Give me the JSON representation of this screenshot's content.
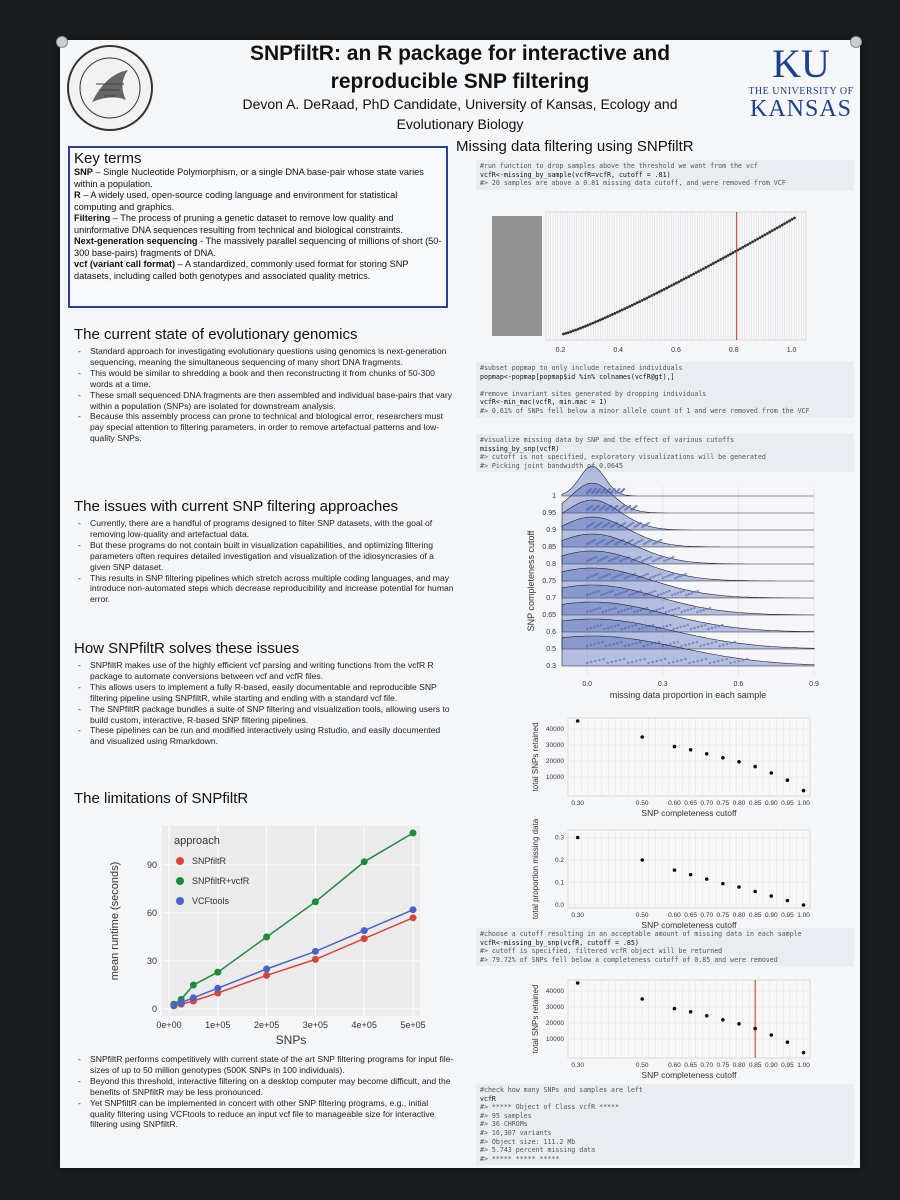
{
  "header": {
    "title_line1": "SNPfiltR: an R package for interactive and",
    "title_line2": "reproducible SNP filtering",
    "author_line1": "Devon A. DeRaad, PhD Candidate, University of Kansas, Ecology and",
    "author_line2": "Evolutionary Biology",
    "seal_text": "KU NATURAL HISTORY MUSEUM",
    "logo_mark": "KU",
    "logo_sub": "THE UNIVERSITY OF",
    "logo_big": "KANSAS"
  },
  "key_terms": {
    "heading": "Key terms",
    "items": [
      {
        "term": "SNP",
        "def": " – Single Nucleotide Polymorphism, or a single DNA base-pair whose state varies within a population."
      },
      {
        "term": "R",
        "def": " – A widely used, open-source coding language and environment for statistical computing and graphics."
      },
      {
        "term": "Filtering",
        "def": " – The process of pruning a genetic dataset to remove low quality and uninformative DNA sequences resulting from technical and biological constraints."
      },
      {
        "term": "Next-generation sequencing",
        "def": " -  The massively parallel sequencing of millions of short (50-300 base-pairs) fragments of DNA."
      },
      {
        "term": "vcf (variant call format)",
        "def": " – A standardized, commonly used format for storing SNP datasets, including called both genotypes and associated quality metrics."
      }
    ]
  },
  "sections": [
    {
      "heading": "The current state of evolutionary genomics",
      "items": [
        "Standard approach for investigating evolutionary questions using genomics is next-generation sequencing, meaning the simultaneous sequencing of many short DNA fragments.",
        "This would be similar to shredding a book and then reconstructing it from chunks of 50-300 words at a time.",
        "These small sequenced DNA fragments are then assembled and individual base-pairs that vary within a population (SNPs) are isolated for downstream analysis.",
        "Because this assembly process can prone to technical and biological error, researchers must pay special attention to filtering parameters, in order to remove artefactual patterns and low-quality SNPs."
      ]
    },
    {
      "heading": "The issues with current SNP filtering approaches",
      "items": [
        "Currently, there are a handful of programs designed to filter SNP datasets, with the goal of removing low-quality and artefactual data.",
        "But these programs do not contain built in visualization capabilities, and optimizing filtering parameters often requires detailed investigation and visualization of the idiosyncrasies of a given SNP dataset.",
        "This results in SNP filtering pipelines which stretch across multiple coding languages, and may introduce non-automated steps which decrease reproducibility and increase potential for human error."
      ]
    },
    {
      "heading": "How SNPfiltR solves these issues",
      "items": [
        "SNPfiltR makes use of the highly efficient vcf parsing and writing functions from the vcfR R package to automate conversions between vcf and vcfR files.",
        "This allows users to implement a fully R-based, easily documentable and reproducible SNP filtering pipeline using SNPfiltR, while starting and ending with a standard vcf file.",
        "The SNPfiltR package bundles a suite of SNP filtering and visualization tools, allowing users to build custom, interactive, R-based SNP filtering pipelines.",
        "These pipelines can be run and modified interactively using Rstudio, and easily documented and visualized using Rmarkdown."
      ]
    },
    {
      "heading": "The limitations of SNPfiltR",
      "items": []
    }
  ],
  "limitations_items": [
    "SNPfiltR performs competitively with current state of the art SNP filtering programs for input file-sizes of up to 50 million genotypes (500K SNPs in 100 individuals).",
    "Beyond this threshold, interactive filtering on a desktop computer may become difficult, and the benefits of SNPfiltR may be less pronounced.",
    "Yet SNPfiltR can be implemented in concert with other SNP filtering programs, e.g., initial quality filtering using VCFtools to reduce an input vcf file to manageable size for interactive filtering using SNPfiltR."
  ],
  "right": {
    "heading": "Missing data filtering using SNPfiltR",
    "code1": [
      "#run function to drop samples above the threshold we want from the vcf",
      "vcfR<-missing_by_sample(vcfR=vcfR, cutoff = .81)",
      "#> 20 samples are above a 0.81 missing data cutoff, and were removed from VCF"
    ],
    "code2": [
      "#subset popmap to only include retained individuals",
      "popmap<-popmap[popmap$id %in% colnames(vcfR@gt),]",
      "",
      "#remove invariant sites generated by dropping individuals",
      "vcfR<-min_mac(vcfR, min.mac = 1)",
      "#> 0.61% of SNPs fell below a minor allele count of 1 and were removed from the VCF"
    ],
    "code3": [
      "#visualize missing data by SNP and the effect of various cutoffs",
      "missing_by_snp(vcfR)",
      "#> cutoff is not specified, exploratory visualizations will be generated",
      "#> Picking joint bandwidth of 0.0645"
    ],
    "code4": [
      "#choose a cutoff resulting in an acceptable amount of missing data in each sample",
      "vcfR<-missing_by_snp(vcfR, cutoff = .85)",
      "#> cutoff is specified, filtered vcfR object will be returned",
      "#> 79.72% of SNPs fell below a completeness cutoff of 0.85 and were removed"
    ],
    "code5": [
      "#check how many SNPs and samples are left",
      "vcfR",
      "#> ***** Object of Class vcfR *****",
      "#> 95 samples",
      "#> 36 CHROMs",
      "#> 16,307 variants",
      "#> Object size: 111.2 Mb",
      "#> 5.743 percent missing data",
      "#> *****        *****         *****"
    ]
  },
  "chart_data": [
    {
      "type": "line",
      "title": "",
      "xlabel": "SNPs",
      "ylabel": "mean runtime (seconds)",
      "legend_title": "approach",
      "legend_position": "top-left",
      "grid": true,
      "xlim": [
        0,
        500000
      ],
      "ylim": [
        0,
        110
      ],
      "xticks": [
        "0e+00",
        "1e+05",
        "2e+05",
        "3e+05",
        "4e+05",
        "5e+05"
      ],
      "yticks": [
        "0",
        "30",
        "60",
        "90"
      ],
      "x": [
        10000,
        25000,
        50000,
        100000,
        200000,
        300000,
        400000,
        500000
      ],
      "series": [
        {
          "name": "SNPfiltR",
          "color": "#d9453b",
          "values": [
            2,
            3,
            5,
            10,
            21,
            31,
            44,
            57
          ]
        },
        {
          "name": "SNPfiltR+vcfR",
          "color": "#1e8a3c",
          "values": [
            3,
            6,
            15,
            23,
            45,
            67,
            92,
            110
          ]
        },
        {
          "name": "VCFtools",
          "color": "#4a63c9",
          "values": [
            2,
            4,
            7,
            13,
            25,
            36,
            49,
            62
          ]
        }
      ]
    },
    {
      "type": "scatter",
      "title": "",
      "xlabel": "",
      "ylabel": "",
      "xlim": [
        0.15,
        1.05
      ],
      "xticks": [
        "0.2",
        "0.4",
        "0.6",
        "0.8",
        "1.0"
      ],
      "cutoff_line": 0.81,
      "grid": true,
      "points_x": [
        0.15,
        0.2,
        0.25,
        0.3,
        0.35,
        0.4,
        0.45,
        0.5,
        0.55,
        0.6,
        0.65,
        0.7,
        0.75,
        0.8,
        0.85,
        0.9,
        0.95,
        1.0
      ]
    },
    {
      "type": "area",
      "title": "",
      "xlabel": "missing data proportion in each sample",
      "ylabel": "SNP completeness cutoff",
      "xlim": [
        -0.1,
        0.9
      ],
      "xticks": [
        "0.0",
        "0.3",
        "0.6",
        "0.9"
      ],
      "yticks": [
        "0.3",
        "0.5",
        "0.6",
        "0.65",
        "0.7",
        "0.75",
        "0.8",
        "0.85",
        "0.9",
        "0.95",
        "1"
      ],
      "grid": true
    },
    {
      "type": "scatter",
      "title": "",
      "xlabel": "SNP completeness cutoff",
      "ylabel": "total SNPs retained",
      "xlim": [
        0.27,
        1.02
      ],
      "ylim": [
        0,
        45000
      ],
      "grid": true,
      "xticks": [
        "0.30",
        "0.50",
        "0.60",
        "0.65",
        "0.70",
        "0.75",
        "0.80",
        "0.85",
        "0.90",
        "0.95",
        "1.00"
      ],
      "yticks": [
        "10000",
        "20000",
        "30000",
        "40000"
      ],
      "x": [
        0.3,
        0.5,
        0.6,
        0.65,
        0.7,
        0.75,
        0.8,
        0.85,
        0.9,
        0.95,
        1.0
      ],
      "values": [
        45000,
        35000,
        29000,
        27000,
        24500,
        22000,
        19500,
        16500,
        12500,
        8000,
        1500
      ]
    },
    {
      "type": "scatter",
      "title": "",
      "xlabel": "SNP completeness cutoff",
      "ylabel": "total proportion missing data",
      "xlim": [
        0.27,
        1.02
      ],
      "ylim": [
        0,
        0.32
      ],
      "grid": true,
      "xticks": [
        "0.30",
        "0.50",
        "0.60",
        "0.65",
        "0.70",
        "0.75",
        "0.80",
        "0.85",
        "0.90",
        "0.95",
        "1.00"
      ],
      "yticks": [
        "0.0",
        "0.1",
        "0.2",
        "0.3"
      ],
      "x": [
        0.3,
        0.5,
        0.6,
        0.65,
        0.7,
        0.75,
        0.8,
        0.85,
        0.9,
        0.95,
        1.0
      ],
      "values": [
        0.3,
        0.2,
        0.155,
        0.135,
        0.115,
        0.095,
        0.08,
        0.06,
        0.04,
        0.02,
        0.0
      ]
    },
    {
      "type": "scatter",
      "title": "",
      "xlabel": "SNP completeness cutoff",
      "ylabel": "total SNPs retained",
      "xlim": [
        0.27,
        1.02
      ],
      "ylim": [
        0,
        45000
      ],
      "cutoff_line": 0.85,
      "grid": true,
      "xticks": [
        "0.30",
        "0.50",
        "0.60",
        "0.65",
        "0.70",
        "0.75",
        "0.80",
        "0.85",
        "0.90",
        "0.95",
        "1.00"
      ],
      "yticks": [
        "10000",
        "20000",
        "30000",
        "40000"
      ],
      "x": [
        0.3,
        0.5,
        0.6,
        0.65,
        0.7,
        0.75,
        0.8,
        0.85,
        0.9,
        0.95,
        1.0
      ],
      "values": [
        45000,
        35000,
        29000,
        27000,
        24500,
        22000,
        19500,
        16500,
        12500,
        8000,
        1500
      ]
    }
  ]
}
